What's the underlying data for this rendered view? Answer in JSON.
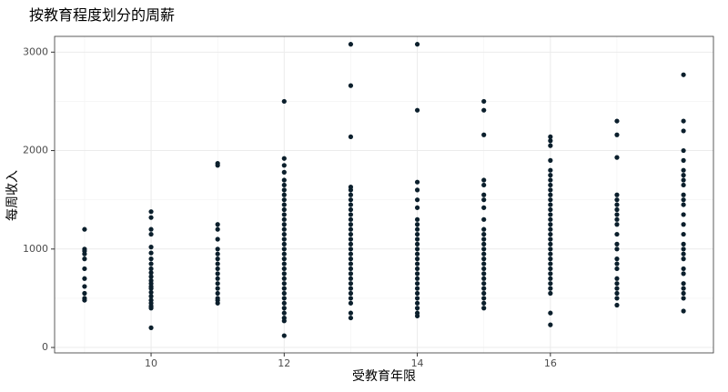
{
  "chart_data": {
    "type": "scatter",
    "title": "按教育程度划分的周薪",
    "x_label": "受教育年限",
    "y_label": "每周收入",
    "color": "#0b1f2c",
    "grid": true,
    "minor_grid": true,
    "xlim": [
      8.55,
      18.45
    ],
    "ylim": [
      -55,
      3160
    ],
    "xticks": [
      10,
      12,
      14,
      16
    ],
    "yticks": [
      0,
      1000,
      2000,
      3000
    ],
    "x": [
      9,
      9,
      9,
      9,
      9,
      9,
      9,
      9,
      9,
      9,
      9,
      10,
      10,
      10,
      10,
      10,
      10,
      10,
      10,
      10,
      10,
      10,
      10,
      10,
      10,
      10,
      10,
      10,
      10,
      10,
      10,
      10,
      10,
      11,
      11,
      11,
      11,
      11,
      11,
      11,
      11,
      11,
      11,
      11,
      11,
      11,
      11,
      11,
      11,
      11,
      11,
      12,
      12,
      12,
      12,
      12,
      12,
      12,
      12,
      12,
      12,
      12,
      12,
      12,
      12,
      12,
      12,
      12,
      12,
      12,
      12,
      12,
      12,
      12,
      12,
      12,
      12,
      12,
      12,
      12,
      12,
      12,
      12,
      12,
      12,
      12,
      13,
      13,
      13,
      13,
      13,
      13,
      13,
      13,
      13,
      13,
      13,
      13,
      13,
      13,
      13,
      13,
      13,
      13,
      13,
      13,
      13,
      13,
      13,
      13,
      13,
      13,
      13,
      13,
      13,
      13,
      14,
      14,
      14,
      14,
      14,
      14,
      14,
      14,
      14,
      14,
      14,
      14,
      14,
      14,
      14,
      14,
      14,
      14,
      14,
      14,
      14,
      14,
      14,
      14,
      14,
      14,
      14,
      15,
      15,
      15,
      15,
      15,
      15,
      15,
      15,
      15,
      15,
      15,
      15,
      15,
      15,
      15,
      15,
      15,
      15,
      15,
      15,
      15,
      15,
      15,
      15,
      15,
      15,
      16,
      16,
      16,
      16,
      16,
      16,
      16,
      16,
      16,
      16,
      16,
      16,
      16,
      16,
      16,
      16,
      16,
      16,
      16,
      16,
      16,
      16,
      16,
      16,
      16,
      16,
      16,
      16,
      16,
      16,
      16,
      16,
      17,
      17,
      17,
      17,
      17,
      17,
      17,
      17,
      17,
      17,
      17,
      17,
      17,
      17,
      17,
      17,
      17,
      17,
      17,
      17,
      17,
      17,
      18,
      18,
      18,
      18,
      18,
      18,
      18,
      18,
      18,
      18,
      18,
      18,
      18,
      18,
      18,
      18,
      18,
      18,
      18,
      18,
      18,
      18,
      18,
      18,
      18,
      18
    ],
    "y": [
      1200,
      1000,
      980,
      950,
      900,
      800,
      700,
      620,
      550,
      500,
      480,
      1380,
      1320,
      1200,
      1150,
      1020,
      960,
      900,
      850,
      800,
      760,
      720,
      680,
      650,
      620,
      600,
      560,
      520,
      480,
      450,
      420,
      400,
      200,
      1870,
      1850,
      1250,
      1200,
      1100,
      1000,
      950,
      900,
      850,
      800,
      750,
      700,
      650,
      600,
      550,
      500,
      480,
      450,
      2500,
      1920,
      1850,
      1780,
      1700,
      1650,
      1600,
      1550,
      1500,
      1450,
      1400,
      1350,
      1300,
      1250,
      1200,
      1150,
      1100,
      1050,
      1000,
      950,
      900,
      850,
      800,
      750,
      700,
      650,
      600,
      550,
      500,
      450,
      400,
      350,
      300,
      270,
      120,
      3080,
      2660,
      2140,
      1630,
      1600,
      1550,
      1500,
      1450,
      1400,
      1350,
      1300,
      1250,
      1200,
      1150,
      1100,
      1050,
      1000,
      950,
      900,
      850,
      800,
      750,
      700,
      650,
      600,
      550,
      500,
      450,
      350,
      300,
      3080,
      2410,
      1680,
      1600,
      1500,
      1420,
      1300,
      1250,
      1200,
      1150,
      1100,
      1050,
      1000,
      950,
      900,
      850,
      800,
      750,
      700,
      650,
      600,
      550,
      500,
      450,
      400,
      350,
      320,
      2500,
      2410,
      2160,
      1700,
      1650,
      1550,
      1500,
      1420,
      1300,
      1200,
      1150,
      1100,
      1050,
      1000,
      950,
      900,
      850,
      800,
      750,
      700,
      650,
      600,
      550,
      500,
      450,
      400,
      2140,
      2100,
      2050,
      1900,
      1800,
      1750,
      1700,
      1650,
      1600,
      1550,
      1500,
      1450,
      1400,
      1350,
      1300,
      1250,
      1200,
      1150,
      1100,
      1050,
      1000,
      950,
      900,
      850,
      800,
      750,
      700,
      650,
      600,
      550,
      350,
      230,
      2300,
      2160,
      1930,
      1550,
      1500,
      1450,
      1400,
      1350,
      1300,
      1250,
      1150,
      1050,
      1000,
      900,
      850,
      800,
      700,
      650,
      600,
      550,
      500,
      430,
      2770,
      2300,
      2200,
      2000,
      1900,
      1800,
      1750,
      1700,
      1650,
      1550,
      1500,
      1450,
      1350,
      1250,
      1150,
      1050,
      1000,
      950,
      900,
      800,
      750,
      650,
      600,
      550,
      500,
      370
    ]
  }
}
